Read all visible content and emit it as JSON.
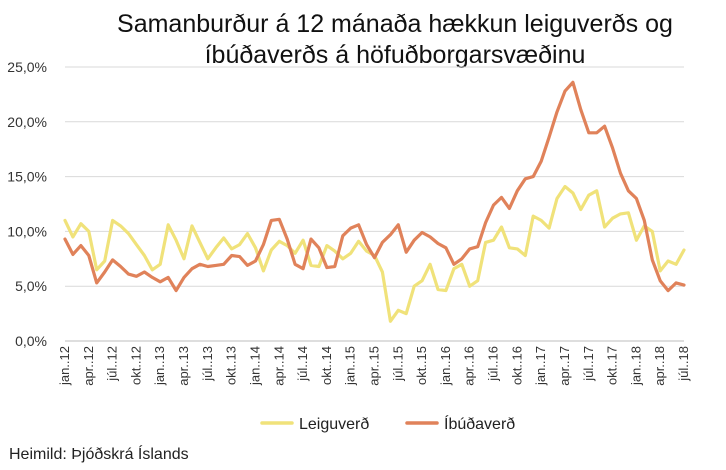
{
  "source": "Heimild: Þjóðskrá Íslands",
  "chart_data": {
    "type": "line",
    "title_lines": [
      "Samanburður á 12 mánaða hækkun leiguverðs og",
      "íbúðaverðs á höfuðborgarsvæðinu"
    ],
    "xlabel": "",
    "ylabel": "",
    "ylim": [
      0,
      25
    ],
    "yticks": [
      0,
      5,
      10,
      15,
      20,
      25
    ],
    "ytick_labels": [
      "0,0%",
      "5,0%",
      "10,0%",
      "15,0%",
      "20,0%",
      "25,0%"
    ],
    "x_tick_labels": [
      "jan..12",
      "apr..12",
      "júl..12",
      "okt..12",
      "jan..13",
      "apr..13",
      "júl..13",
      "okt..13",
      "jan..14",
      "apr..14",
      "júl..14",
      "okt..14",
      "jan..15",
      "apr..15",
      "júl..15",
      "okt..15",
      "jan..16",
      "apr..16",
      "júl..16",
      "okt..16",
      "jan..17",
      "apr..17",
      "júl..17",
      "okt..17",
      "jan..18",
      "apr..18",
      "júl..18"
    ],
    "months_count": 79,
    "grid": true,
    "legend_position": "bottom",
    "series": [
      {
        "name": "Leiguverð",
        "color": "#f0e27a",
        "values": [
          11.0,
          9.5,
          10.7,
          10.0,
          6.5,
          7.3,
          11.0,
          10.5,
          9.8,
          8.8,
          7.8,
          6.5,
          7.0,
          10.6,
          9.2,
          7.5,
          10.5,
          9.0,
          7.5,
          8.5,
          9.4,
          8.4,
          8.8,
          9.8,
          8.5,
          6.4,
          8.3,
          9.1,
          8.7,
          8.0,
          9.2,
          6.9,
          6.8,
          8.7,
          8.2,
          7.5,
          8.0,
          9.1,
          8.2,
          7.8,
          6.3,
          1.8,
          2.8,
          2.5,
          5.0,
          5.5,
          7.0,
          4.7,
          4.6,
          6.6,
          7.0,
          5.0,
          5.5,
          9.0,
          9.2,
          10.4,
          8.5,
          8.4,
          7.8,
          11.4,
          11.0,
          10.3,
          13.0,
          14.1,
          13.5,
          12.0,
          13.3,
          13.7,
          10.4,
          11.2,
          11.6,
          11.7,
          9.2,
          10.5,
          10.0,
          6.4,
          7.3,
          7.0,
          8.3
        ]
      },
      {
        "name": "Íbúðaverð",
        "color": "#e0825a",
        "values": [
          9.3,
          7.9,
          8.7,
          7.8,
          5.3,
          6.3,
          7.4,
          6.8,
          6.1,
          5.9,
          6.3,
          5.8,
          5.4,
          5.8,
          4.6,
          5.8,
          6.6,
          7.0,
          6.8,
          6.9,
          7.0,
          7.8,
          7.7,
          6.9,
          7.3,
          8.8,
          11.0,
          11.1,
          9.3,
          7.0,
          6.6,
          9.3,
          8.5,
          6.7,
          6.8,
          9.6,
          10.3,
          10.6,
          8.8,
          7.6,
          9.0,
          9.7,
          10.6,
          8.1,
          9.2,
          9.9,
          9.5,
          8.9,
          8.5,
          7.0,
          7.5,
          8.4,
          8.6,
          10.8,
          12.4,
          13.1,
          12.1,
          13.7,
          14.8,
          15.0,
          16.4,
          18.6,
          20.9,
          22.8,
          23.6,
          21.1,
          19.0,
          19.0,
          19.6,
          17.6,
          15.3,
          13.7,
          13.0,
          11.0,
          7.4,
          5.5,
          4.6,
          5.3,
          5.1
        ]
      }
    ]
  }
}
